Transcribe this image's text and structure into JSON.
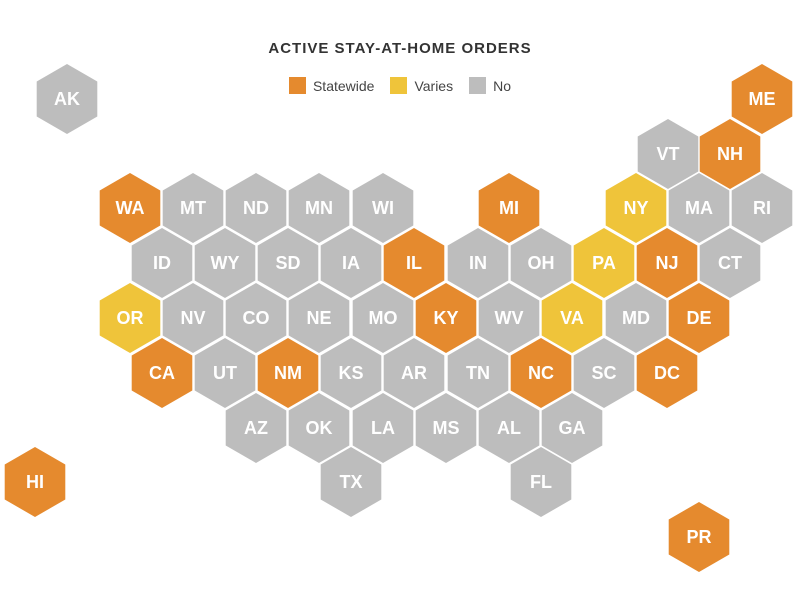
{
  "title": "ACTIVE STAY-AT-HOME ORDERS",
  "colors": {
    "statewide": "#E58A2E",
    "varies": "#EFC43A",
    "no": "#BDBDBD"
  },
  "legend": [
    {
      "key": "statewide",
      "label": "Statewide"
    },
    {
      "key": "varies",
      "label": "Varies"
    },
    {
      "key": "no",
      "label": "No"
    }
  ],
  "states": [
    {
      "code": "AK",
      "status": "no"
    },
    {
      "code": "ME",
      "status": "statewide"
    },
    {
      "code": "VT",
      "status": "no"
    },
    {
      "code": "NH",
      "status": "statewide"
    },
    {
      "code": "WA",
      "status": "statewide"
    },
    {
      "code": "MT",
      "status": "no"
    },
    {
      "code": "ND",
      "status": "no"
    },
    {
      "code": "MN",
      "status": "no"
    },
    {
      "code": "WI",
      "status": "no"
    },
    {
      "code": "MI",
      "status": "statewide"
    },
    {
      "code": "NY",
      "status": "varies"
    },
    {
      "code": "MA",
      "status": "no"
    },
    {
      "code": "RI",
      "status": "no"
    },
    {
      "code": "ID",
      "status": "no"
    },
    {
      "code": "WY",
      "status": "no"
    },
    {
      "code": "SD",
      "status": "no"
    },
    {
      "code": "IA",
      "status": "no"
    },
    {
      "code": "IL",
      "status": "statewide"
    },
    {
      "code": "IN",
      "status": "no"
    },
    {
      "code": "OH",
      "status": "no"
    },
    {
      "code": "PA",
      "status": "varies"
    },
    {
      "code": "NJ",
      "status": "statewide"
    },
    {
      "code": "CT",
      "status": "no"
    },
    {
      "code": "OR",
      "status": "varies"
    },
    {
      "code": "NV",
      "status": "no"
    },
    {
      "code": "CO",
      "status": "no"
    },
    {
      "code": "NE",
      "status": "no"
    },
    {
      "code": "MO",
      "status": "no"
    },
    {
      "code": "KY",
      "status": "statewide"
    },
    {
      "code": "WV",
      "status": "no"
    },
    {
      "code": "VA",
      "status": "varies"
    },
    {
      "code": "MD",
      "status": "no"
    },
    {
      "code": "DE",
      "status": "statewide"
    },
    {
      "code": "CA",
      "status": "statewide"
    },
    {
      "code": "UT",
      "status": "no"
    },
    {
      "code": "NM",
      "status": "statewide"
    },
    {
      "code": "KS",
      "status": "no"
    },
    {
      "code": "AR",
      "status": "no"
    },
    {
      "code": "TN",
      "status": "no"
    },
    {
      "code": "NC",
      "status": "statewide"
    },
    {
      "code": "SC",
      "status": "no"
    },
    {
      "code": "DC",
      "status": "statewide"
    },
    {
      "code": "AZ",
      "status": "no"
    },
    {
      "code": "OK",
      "status": "no"
    },
    {
      "code": "LA",
      "status": "no"
    },
    {
      "code": "MS",
      "status": "no"
    },
    {
      "code": "AL",
      "status": "no"
    },
    {
      "code": "GA",
      "status": "no"
    },
    {
      "code": "HI",
      "status": "statewide"
    },
    {
      "code": "TX",
      "status": "no"
    },
    {
      "code": "FL",
      "status": "no"
    },
    {
      "code": "PR",
      "status": "statewide"
    }
  ]
}
